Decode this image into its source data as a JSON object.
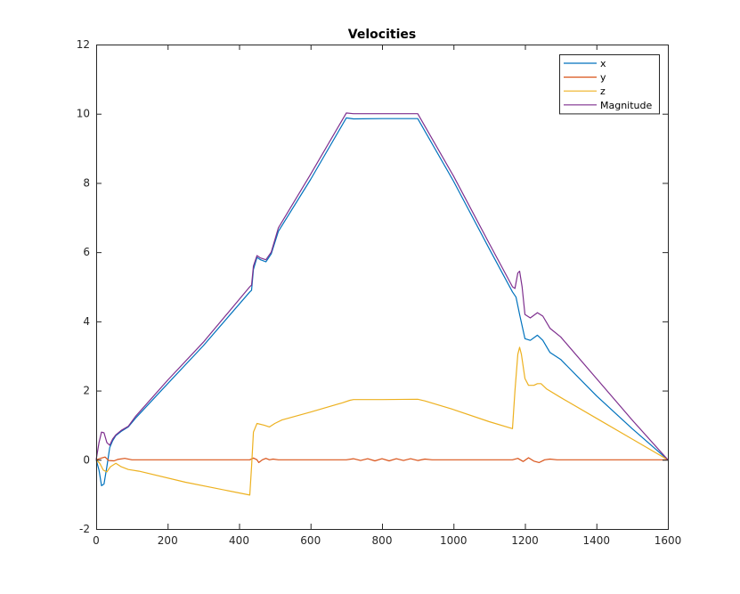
{
  "chart_data": {
    "type": "line",
    "title": "Velocities",
    "xlabel": "",
    "ylabel": "",
    "xlim": [
      0,
      1600
    ],
    "ylim": [
      -2,
      12
    ],
    "xticks": [
      0,
      200,
      400,
      600,
      800,
      1000,
      1200,
      1400,
      1600
    ],
    "yticks": [
      -2,
      0,
      2,
      4,
      6,
      8,
      10,
      12
    ],
    "xtick_labels": [
      "0",
      "200",
      "400",
      "600",
      "800",
      "1000",
      "1200",
      "1400",
      "1600"
    ],
    "ytick_labels": [
      "-2",
      "0",
      "2",
      "4",
      "6",
      "8",
      "10",
      "12"
    ],
    "grid": false,
    "legend_position": "top-right",
    "series": [
      {
        "name": "x",
        "color": "#0072BD",
        "points": [
          [
            0,
            0
          ],
          [
            8,
            -0.3
          ],
          [
            15,
            -0.75
          ],
          [
            22,
            -0.7
          ],
          [
            30,
            -0.2
          ],
          [
            38,
            0.35
          ],
          [
            46,
            0.55
          ],
          [
            55,
            0.7
          ],
          [
            70,
            0.82
          ],
          [
            90,
            0.95
          ],
          [
            110,
            1.2
          ],
          [
            200,
            2.2
          ],
          [
            300,
            3.3
          ],
          [
            430,
            4.85
          ],
          [
            435,
            4.9
          ],
          [
            440,
            5.5
          ],
          [
            450,
            5.85
          ],
          [
            460,
            5.78
          ],
          [
            475,
            5.72
          ],
          [
            490,
            5.95
          ],
          [
            510,
            6.6
          ],
          [
            600,
            8.1
          ],
          [
            700,
            9.88
          ],
          [
            720,
            9.85
          ],
          [
            800,
            9.86
          ],
          [
            900,
            9.86
          ],
          [
            1000,
            8.05
          ],
          [
            1100,
            6.1
          ],
          [
            1165,
            4.85
          ],
          [
            1175,
            4.7
          ],
          [
            1185,
            4.2
          ],
          [
            1200,
            3.5
          ],
          [
            1215,
            3.45
          ],
          [
            1235,
            3.6
          ],
          [
            1250,
            3.45
          ],
          [
            1270,
            3.1
          ],
          [
            1300,
            2.9
          ],
          [
            1400,
            1.85
          ],
          [
            1500,
            0.9
          ],
          [
            1600,
            0
          ]
        ]
      },
      {
        "name": "y",
        "color": "#D95319",
        "points": [
          [
            0,
            0
          ],
          [
            15,
            0.05
          ],
          [
            25,
            0.08
          ],
          [
            35,
            -0.02
          ],
          [
            50,
            -0.03
          ],
          [
            60,
            0.01
          ],
          [
            80,
            0.04
          ],
          [
            100,
            0
          ],
          [
            430,
            0
          ],
          [
            440,
            0.05
          ],
          [
            450,
            0
          ],
          [
            455,
            -0.08
          ],
          [
            465,
            0
          ],
          [
            475,
            0.04
          ],
          [
            485,
            0
          ],
          [
            495,
            0.02
          ],
          [
            510,
            0
          ],
          [
            700,
            0
          ],
          [
            720,
            0.03
          ],
          [
            740,
            -0.02
          ],
          [
            760,
            0.03
          ],
          [
            780,
            -0.03
          ],
          [
            800,
            0.03
          ],
          [
            820,
            -0.03
          ],
          [
            840,
            0.03
          ],
          [
            860,
            -0.02
          ],
          [
            880,
            0.03
          ],
          [
            900,
            -0.02
          ],
          [
            920,
            0.02
          ],
          [
            940,
            0
          ],
          [
            1165,
            0
          ],
          [
            1180,
            0.04
          ],
          [
            1195,
            -0.05
          ],
          [
            1210,
            0.06
          ],
          [
            1225,
            -0.04
          ],
          [
            1240,
            -0.08
          ],
          [
            1255,
            0
          ],
          [
            1270,
            0.02
          ],
          [
            1290,
            0
          ],
          [
            1600,
            0
          ]
        ]
      },
      {
        "name": "z",
        "color": "#EDB120",
        "points": [
          [
            0,
            0
          ],
          [
            10,
            -0.1
          ],
          [
            20,
            -0.3
          ],
          [
            30,
            -0.35
          ],
          [
            40,
            -0.2
          ],
          [
            55,
            -0.1
          ],
          [
            70,
            -0.2
          ],
          [
            90,
            -0.28
          ],
          [
            120,
            -0.33
          ],
          [
            250,
            -0.65
          ],
          [
            430,
            -1.02
          ],
          [
            435,
            -0.2
          ],
          [
            440,
            0.8
          ],
          [
            450,
            1.05
          ],
          [
            470,
            1.0
          ],
          [
            485,
            0.95
          ],
          [
            500,
            1.05
          ],
          [
            520,
            1.15
          ],
          [
            600,
            1.38
          ],
          [
            690,
            1.65
          ],
          [
            710,
            1.72
          ],
          [
            720,
            1.74
          ],
          [
            800,
            1.74
          ],
          [
            900,
            1.75
          ],
          [
            920,
            1.7
          ],
          [
            1000,
            1.45
          ],
          [
            1100,
            1.1
          ],
          [
            1165,
            0.9
          ],
          [
            1172,
            2.0
          ],
          [
            1180,
            3.05
          ],
          [
            1185,
            3.25
          ],
          [
            1190,
            3.05
          ],
          [
            1200,
            2.35
          ],
          [
            1210,
            2.15
          ],
          [
            1225,
            2.15
          ],
          [
            1235,
            2.2
          ],
          [
            1245,
            2.2
          ],
          [
            1260,
            2.05
          ],
          [
            1300,
            1.8
          ],
          [
            1400,
            1.2
          ],
          [
            1500,
            0.6
          ],
          [
            1600,
            0
          ]
        ]
      },
      {
        "name": "Magnitude",
        "color": "#7E2F8E",
        "points": [
          [
            0,
            0
          ],
          [
            8,
            0.5
          ],
          [
            15,
            0.8
          ],
          [
            22,
            0.78
          ],
          [
            30,
            0.5
          ],
          [
            38,
            0.42
          ],
          [
            46,
            0.6
          ],
          [
            55,
            0.72
          ],
          [
            70,
            0.85
          ],
          [
            90,
            0.97
          ],
          [
            110,
            1.25
          ],
          [
            200,
            2.3
          ],
          [
            300,
            3.4
          ],
          [
            430,
            5.0
          ],
          [
            435,
            5.05
          ],
          [
            440,
            5.6
          ],
          [
            450,
            5.9
          ],
          [
            460,
            5.83
          ],
          [
            475,
            5.78
          ],
          [
            490,
            6.0
          ],
          [
            510,
            6.7
          ],
          [
            600,
            8.25
          ],
          [
            700,
            10.02
          ],
          [
            720,
            10.0
          ],
          [
            800,
            10.0
          ],
          [
            900,
            10.0
          ],
          [
            1000,
            8.2
          ],
          [
            1100,
            6.25
          ],
          [
            1165,
            5.0
          ],
          [
            1172,
            4.95
          ],
          [
            1180,
            5.4
          ],
          [
            1185,
            5.45
          ],
          [
            1192,
            5.0
          ],
          [
            1200,
            4.2
          ],
          [
            1215,
            4.1
          ],
          [
            1235,
            4.25
          ],
          [
            1250,
            4.15
          ],
          [
            1270,
            3.8
          ],
          [
            1300,
            3.55
          ],
          [
            1400,
            2.35
          ],
          [
            1500,
            1.15
          ],
          [
            1600,
            0
          ]
        ]
      }
    ]
  }
}
